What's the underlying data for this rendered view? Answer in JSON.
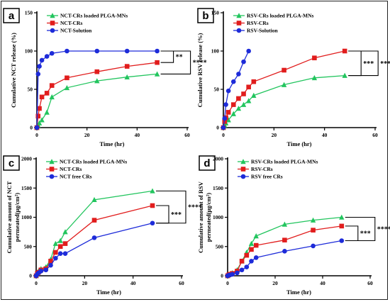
{
  "colors": {
    "green": "#22c55e",
    "red": "#e11d1d",
    "blue": "#1d2bd9"
  },
  "chart_data": [
    {
      "type": "line",
      "panel": "a",
      "xlabel": "Time (hr)",
      "ylabel": "Cumulative NCT release (%)",
      "xlim": [
        0,
        60
      ],
      "ylim": [
        0,
        150
      ],
      "xticks": [
        0,
        20,
        40,
        60
      ],
      "yticks": [
        0,
        50,
        100,
        150
      ],
      "legend_position": "top-left",
      "series": [
        {
          "name": "NCT-CRs loaded PLGA-MNs",
          "color": "green",
          "marker": "triangle",
          "x": [
            0,
            0.5,
            1,
            2,
            4,
            6,
            12,
            24,
            36,
            48
          ],
          "y": [
            0,
            3,
            6,
            10,
            20,
            40,
            52,
            61,
            66,
            70
          ]
        },
        {
          "name": "NCT-CRs",
          "color": "red",
          "marker": "square",
          "x": [
            0,
            0.5,
            1,
            2,
            4,
            6,
            12,
            24,
            36,
            48
          ],
          "y": [
            0,
            15,
            25,
            40,
            45,
            55,
            65,
            73,
            80,
            85
          ]
        },
        {
          "name": "NCT-Solution",
          "color": "blue",
          "marker": "circle",
          "x": [
            0,
            0.5,
            1,
            2,
            4,
            6,
            12,
            24,
            36,
            48
          ],
          "y": [
            0,
            70,
            80,
            88,
            93,
            97,
            100,
            100,
            100,
            100
          ]
        }
      ],
      "significance": [
        {
          "label": "**",
          "from_series": 2,
          "to_series": 1
        },
        {
          "label": "****",
          "from_series": 2,
          "to_series": 0
        }
      ]
    },
    {
      "type": "line",
      "panel": "b",
      "xlabel": "Time (hr)",
      "ylabel": "Cumulative RSV release (%)",
      "xlim": [
        0,
        60
      ],
      "ylim": [
        0,
        150
      ],
      "xticks": [
        0,
        20,
        40,
        60
      ],
      "yticks": [
        0,
        50,
        100,
        150
      ],
      "legend_position": "top-left",
      "series": [
        {
          "name": "RSV-CRs loaded PLGA-MNs",
          "color": "green",
          "marker": "triangle",
          "x": [
            0,
            0.5,
            1,
            2,
            4,
            6,
            8,
            10,
            12,
            24,
            36,
            48
          ],
          "y": [
            0,
            3,
            6,
            10,
            18,
            25,
            30,
            35,
            42,
            56,
            65,
            68
          ]
        },
        {
          "name": "RSV-CRs",
          "color": "red",
          "marker": "square",
          "x": [
            0,
            0.5,
            1,
            2,
            4,
            6,
            8,
            10,
            12,
            24,
            36,
            48
          ],
          "y": [
            0,
            8,
            13,
            20,
            30,
            38,
            44,
            53,
            60,
            75,
            91,
            100
          ]
        },
        {
          "name": "RSV-Solution",
          "color": "blue",
          "marker": "circle",
          "x": [
            0,
            0.5,
            1,
            2,
            4,
            6,
            8,
            10
          ],
          "y": [
            0,
            12,
            30,
            48,
            60,
            70,
            86,
            100
          ]
        }
      ],
      "significance": [
        {
          "label": "***",
          "from_series": 1,
          "to_series": 0
        },
        {
          "label": "****",
          "from_series": 2,
          "to_series": 0
        }
      ]
    },
    {
      "type": "line",
      "panel": "c",
      "xlabel": "Time (hr)",
      "ylabel": "Cumulative amount of NCT permeated(µg/cm²)",
      "xlim": [
        0,
        60
      ],
      "ylim": [
        0,
        2000
      ],
      "xticks": [
        0,
        20,
        40,
        60
      ],
      "yticks": [
        0,
        500,
        1000,
        1500,
        2000
      ],
      "legend_position": "top-left",
      "series": [
        {
          "name": "NCT-CRs loaded PLGA-MNs",
          "color": "green",
          "marker": "triangle",
          "x": [
            0,
            0.5,
            1,
            2,
            4,
            6,
            8,
            10,
            12,
            24,
            48
          ],
          "y": [
            0,
            50,
            80,
            120,
            150,
            280,
            550,
            600,
            750,
            1300,
            1450
          ]
        },
        {
          "name": "NCT-CRs",
          "color": "red",
          "marker": "square",
          "x": [
            0,
            0.5,
            1,
            2,
            4,
            6,
            8,
            10,
            12,
            24,
            48
          ],
          "y": [
            0,
            40,
            60,
            100,
            120,
            250,
            400,
            500,
            550,
            950,
            1200
          ]
        },
        {
          "name": "NCT free CRs",
          "color": "blue",
          "marker": "circle",
          "x": [
            0,
            0.5,
            1,
            2,
            4,
            6,
            8,
            10,
            12,
            24,
            48
          ],
          "y": [
            0,
            30,
            50,
            80,
            100,
            180,
            300,
            380,
            380,
            650,
            900
          ]
        }
      ],
      "significance": [
        {
          "label": "***",
          "from_series": 1,
          "to_series": 2
        },
        {
          "label": "****",
          "from_series": 0,
          "to_series": 2
        }
      ]
    },
    {
      "type": "line",
      "panel": "d",
      "xlabel": "Time (hr)",
      "ylabel": "Cumulative amount of RSV permeated(µg/cm²)",
      "xlim": [
        0,
        60
      ],
      "ylim": [
        0,
        2000
      ],
      "xticks": [
        0,
        20,
        40,
        60
      ],
      "yticks": [
        0,
        500,
        1000,
        1500,
        2000
      ],
      "legend_position": "top-left",
      "series": [
        {
          "name": "RSV-CRs loaded PLGA-MNs",
          "color": "green",
          "marker": "triangle",
          "x": [
            0,
            0.5,
            1,
            2,
            4,
            6,
            8,
            10,
            12,
            24,
            36,
            48
          ],
          "y": [
            0,
            20,
            30,
            50,
            100,
            250,
            400,
            550,
            680,
            880,
            950,
            1000
          ]
        },
        {
          "name": "RSV-CRs",
          "color": "red",
          "marker": "square",
          "x": [
            0,
            0.5,
            1,
            2,
            4,
            6,
            8,
            10,
            12,
            24,
            36,
            48
          ],
          "y": [
            0,
            15,
            25,
            40,
            80,
            250,
            350,
            450,
            520,
            610,
            780,
            850
          ]
        },
        {
          "name": "RSV free CRs",
          "color": "blue",
          "marker": "circle",
          "x": [
            0,
            0.5,
            1,
            2,
            4,
            6,
            8,
            10,
            12,
            24,
            36,
            48
          ],
          "y": [
            0,
            10,
            15,
            25,
            50,
            100,
            150,
            250,
            310,
            420,
            510,
            600
          ]
        }
      ],
      "significance": [
        {
          "label": "***",
          "from_series": 1,
          "to_series": 2
        },
        {
          "label": "****",
          "from_series": 0,
          "to_series": 2
        }
      ]
    }
  ]
}
